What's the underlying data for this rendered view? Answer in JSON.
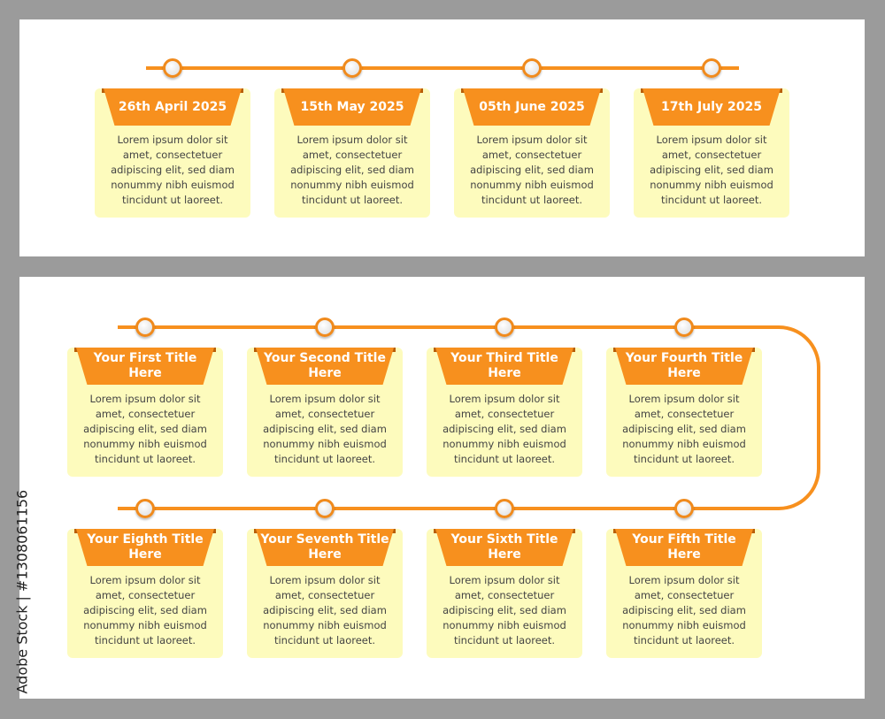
{
  "accent_color": "#f7901e",
  "card_color": "#fdfbbd",
  "body_text": "Lorem ipsum dolor sit amet, consectetuer adipiscing elit, sed diam nonummy nibh euismod tincidunt ut laoreet.",
  "top_timeline": [
    {
      "title": "26th April 2025"
    },
    {
      "title": "15th May 2025"
    },
    {
      "title": "05th June 2025"
    },
    {
      "title": "17th July 2025"
    }
  ],
  "bottom_row1": [
    {
      "title": "Your First Title Here"
    },
    {
      "title": "Your Second Title Here"
    },
    {
      "title": "Your Third Title Here"
    },
    {
      "title": "Your Fourth Title Here"
    }
  ],
  "bottom_row2": [
    {
      "title": "Your Eighth Title Here"
    },
    {
      "title": "Your Seventh Title Here"
    },
    {
      "title": "Your Sixth Title Here"
    },
    {
      "title": "Your Fifth Title Here"
    }
  ],
  "credit": "Adobe Stock | #1308061156"
}
